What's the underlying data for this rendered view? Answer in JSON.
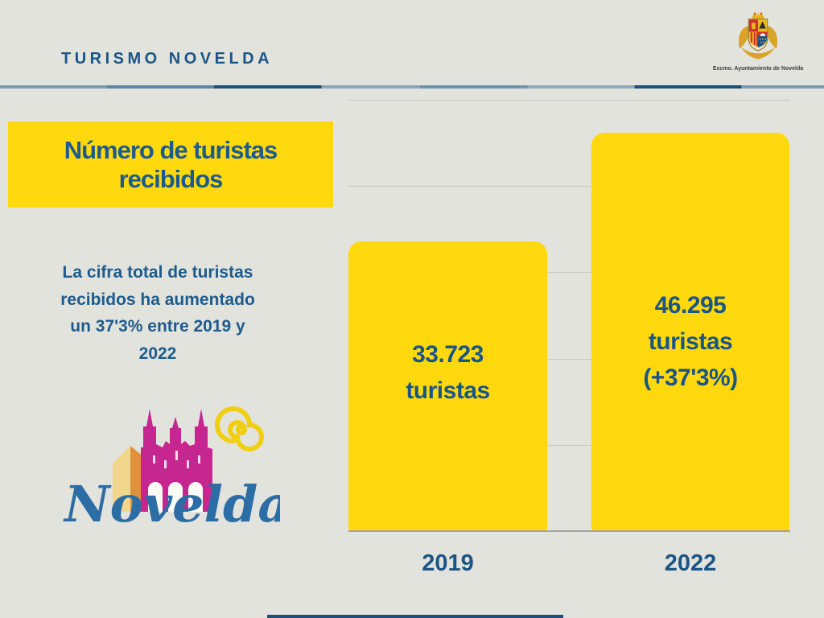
{
  "header": {
    "brand": "TURISMO NOVELDA",
    "crest_caption": "Excmo. Ayuntamiento de Novelda"
  },
  "title_box": {
    "lines": [
      "Número de turistas",
      "recibidos"
    ]
  },
  "intro": {
    "lines": [
      "La cifra total de turistas",
      "recibidos ha aumentado",
      "un 37'3% entre 2019 y",
      "2022"
    ]
  },
  "logo": {
    "wordmark": "Novelda"
  },
  "chart_data": {
    "type": "bar",
    "title": "Número de turistas recibidos",
    "categories": [
      "2019",
      "2022"
    ],
    "values": [
      33723,
      46295
    ],
    "bar_labels": [
      [
        "33.723",
        "turistas"
      ],
      [
        "46.295",
        "turistas",
        "(+37'3%)"
      ]
    ],
    "xlabel": "",
    "ylabel": "",
    "ylim": [
      0,
      50000
    ],
    "gridline_step": 10000,
    "grid": true,
    "legend": "none",
    "bar_color": "#ffd90d",
    "label_color": "#1a5586"
  },
  "colors": {
    "background": "#e2e3dd",
    "accent_yellow": "#ffd90d",
    "text_blue": "#1d5b8c",
    "line_navy": "#1f4e79",
    "gridline": "#c7c7c3",
    "logo_magenta": "#c5268f",
    "logo_orange": "#e1913c",
    "logo_cream": "#f1d68c",
    "logo_sun_yellow": "#f0cf12",
    "logo_script_blue": "#2d6da5"
  }
}
